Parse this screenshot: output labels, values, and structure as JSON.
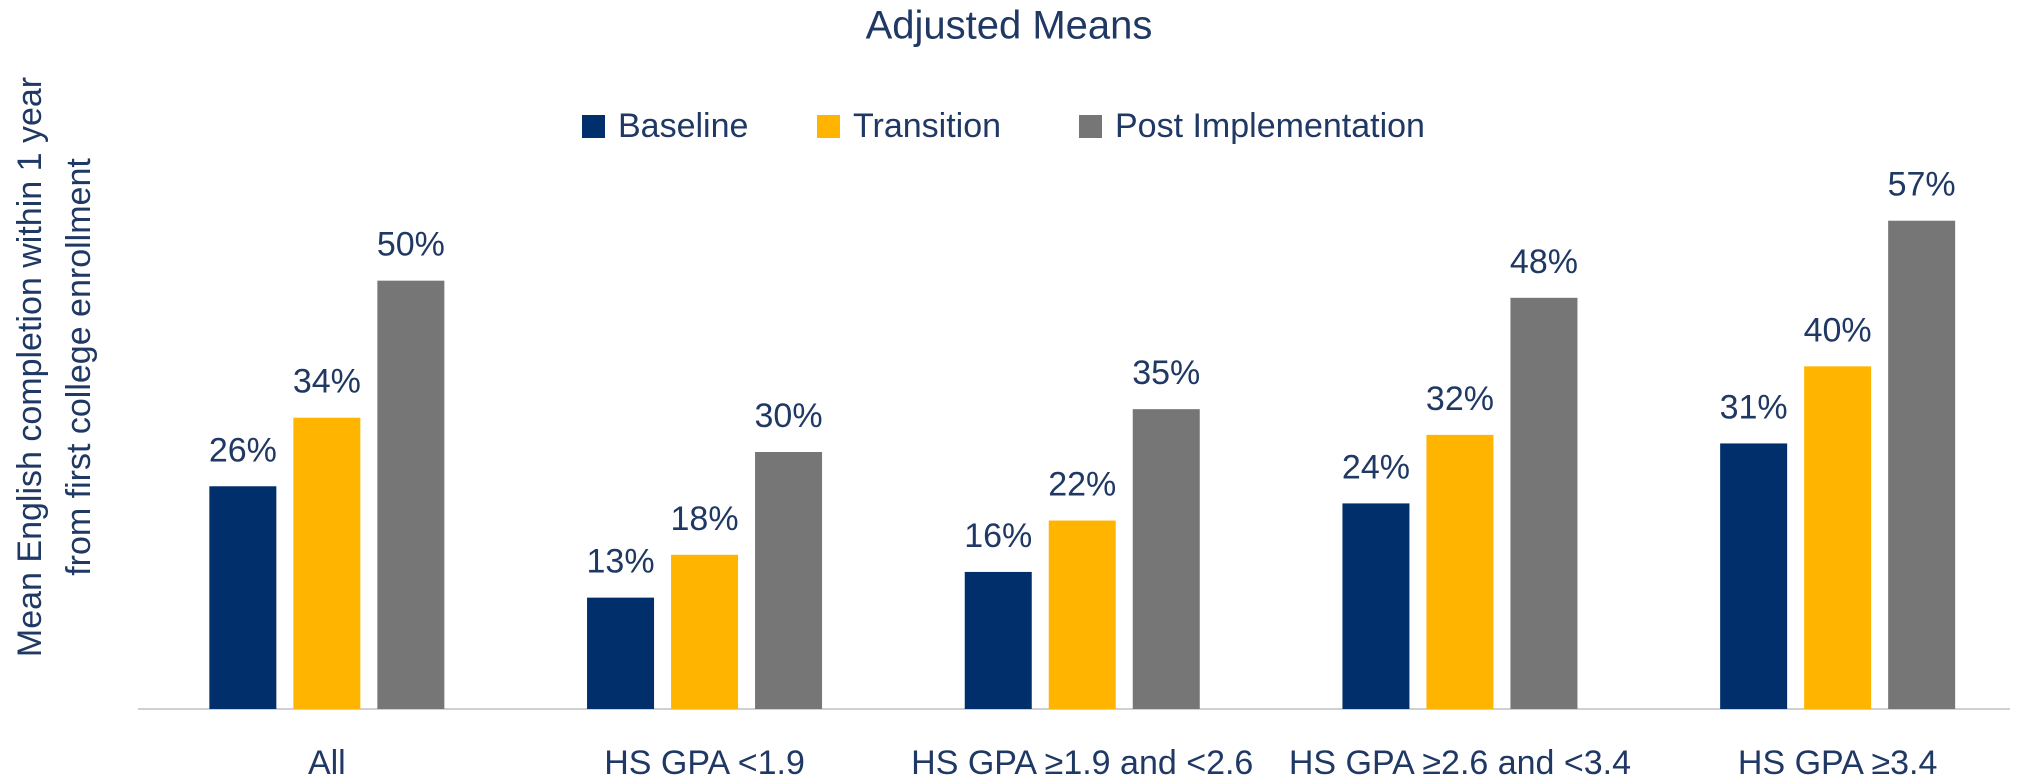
{
  "chart_data": {
    "type": "bar",
    "title": "Adjusted Means",
    "ylabel": [
      "Mean English completion within 1 year",
      "from first college enrollment"
    ],
    "categories": [
      "All",
      "HS GPA <1.9",
      "HS GPA ≥1.9 and <2.6",
      "HS GPA ≥2.6 and <3.4",
      "HS GPA ≥3.4"
    ],
    "series": [
      {
        "name": "Baseline",
        "color": "#002f6c",
        "values": [
          26,
          13,
          16,
          24,
          31
        ],
        "value_labels": [
          "26%",
          "13%",
          "16%",
          "24%",
          "31%"
        ]
      },
      {
        "name": "Transition",
        "color": "#ffb500",
        "values": [
          34,
          18,
          22,
          32,
          40
        ],
        "value_labels": [
          "34%",
          "18%",
          "22%",
          "32%",
          "40%"
        ]
      },
      {
        "name": "Post Implementation",
        "color": "#767676",
        "values": [
          50,
          30,
          35,
          48,
          57
        ],
        "value_labels": [
          "50%",
          "30%",
          "35%",
          "48%",
          "57%"
        ]
      }
    ],
    "ylim": [
      0,
      60
    ],
    "legend": "top"
  }
}
